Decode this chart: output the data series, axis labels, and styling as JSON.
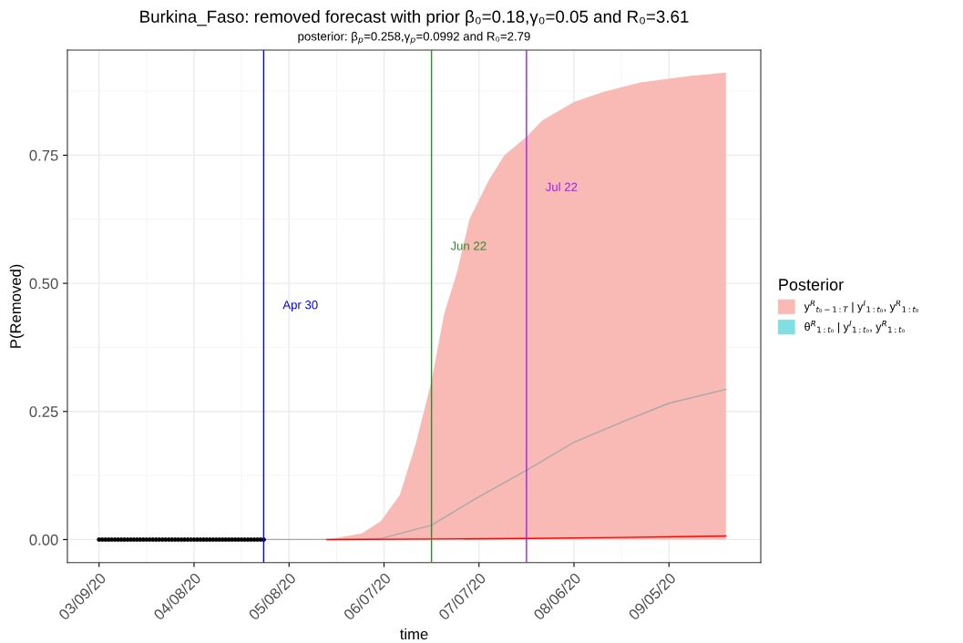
{
  "chart_data": {
    "type": "line",
    "title": "Burkina_Faso: removed forecast with prior β₀=0.18,γ₀=0.05 and R₀=3.61",
    "subtitle": "posterior: β$_{p}$=0.258,γ$_{p}$=0.0992 and R₀=2.79",
    "xlabel": "time",
    "ylabel": "P(Removed)",
    "legend_title": "Posterior",
    "legend": "right",
    "grid": true,
    "xlim": [
      "2020-02-28",
      "2020-10-04"
    ],
    "xticks": [
      {
        "value": "2020-03-09",
        "label": "03/09/20"
      },
      {
        "value": "2020-04-08",
        "label": "04/08/20"
      },
      {
        "value": "2020-05-08",
        "label": "05/08/20"
      },
      {
        "value": "2020-06-07",
        "label": "06/07/20"
      },
      {
        "value": "2020-07-07",
        "label": "07/07/20"
      },
      {
        "value": "2020-08-06",
        "label": "08/06/20"
      },
      {
        "value": "2020-09-05",
        "label": "09/05/20"
      }
    ],
    "ylim": [
      -0.045,
      0.955
    ],
    "yticks": [
      {
        "value": 0,
        "label": "0.00"
      },
      {
        "value": 0.25,
        "label": "0.25"
      },
      {
        "value": 0.5,
        "label": "0.50"
      },
      {
        "value": 0.75,
        "label": "0.75"
      }
    ],
    "ref_lines": [
      {
        "axis": "x",
        "value": "2020-04-30",
        "label": "Apr 30",
        "color": "#0000ff"
      },
      {
        "axis": "x",
        "value": "2020-06-22",
        "label": "Jun 22",
        "color": "#2e8b2e"
      },
      {
        "axis": "x",
        "value": "2020-07-22",
        "label": "Jul 22",
        "color": "#a020f0"
      }
    ],
    "series": [
      {
        "type": "area",
        "name": "y$^{R}$$_{t₀−1:T}$ | y$^{I}$$_{1:t₀}$, y$^{R}$$_{1:t₀}$",
        "color": "#f9b9b4",
        "x": [
          "2020-05-20",
          "2020-05-31",
          "2020-06-06",
          "2020-06-12",
          "2020-06-17",
          "2020-06-22",
          "2020-06-26",
          "2020-06-30",
          "2020-07-04",
          "2020-07-10",
          "2020-07-15",
          "2020-07-22",
          "2020-07-27",
          "2020-08-06",
          "2020-08-15",
          "2020-08-27",
          "2020-09-12",
          "2020-09-23"
        ],
        "values": [
          0,
          0.012,
          0.036,
          0.087,
          0.186,
          0.309,
          0.44,
          0.52,
          0.625,
          0.7,
          0.75,
          0.786,
          0.818,
          0.854,
          0.873,
          0.892,
          0.905,
          0.911
        ]
      },
      {
        "type": "area",
        "name": "θ$^{R}$$_{1:t₀}$ | y$^{I}$$_{1:t₀}$, y$^{R}$$_{1:t₀}$",
        "color": "#7fdfe1"
      },
      {
        "color": "#a8a8a8",
        "x": [
          "2020-04-30",
          "2020-05-20",
          "2020-05-31",
          "2020-06-06",
          "2020-06-22",
          "2020-07-06",
          "2020-07-22",
          "2020-08-06",
          "2020-08-21",
          "2020-09-05",
          "2020-09-23"
        ],
        "values": [
          0,
          0,
          0.001,
          0.002,
          0.028,
          0.08,
          0.135,
          0.19,
          0.229,
          0.266,
          0.293
        ]
      },
      {
        "color": "#ff0000",
        "x": [
          "2020-05-20",
          "2020-06-22",
          "2020-07-22",
          "2020-08-21",
          "2020-09-23"
        ],
        "values": [
          0,
          0.001,
          0.002,
          0.004,
          0.007
        ]
      },
      {
        "type": "scatter",
        "color": "#000000",
        "marker": "circle",
        "x": [
          "2020-03-09",
          "2020-03-10",
          "2020-03-11",
          "2020-03-12",
          "2020-03-13",
          "2020-03-14",
          "2020-03-15",
          "2020-03-16",
          "2020-03-17",
          "2020-03-18",
          "2020-03-19",
          "2020-03-20",
          "2020-03-21",
          "2020-03-22",
          "2020-03-23",
          "2020-03-24",
          "2020-03-25",
          "2020-03-26",
          "2020-03-27",
          "2020-03-28",
          "2020-03-29",
          "2020-03-30",
          "2020-03-31",
          "2020-04-01",
          "2020-04-02",
          "2020-04-03",
          "2020-04-04",
          "2020-04-05",
          "2020-04-06",
          "2020-04-07",
          "2020-04-08",
          "2020-04-09",
          "2020-04-10",
          "2020-04-11",
          "2020-04-12",
          "2020-04-13",
          "2020-04-14",
          "2020-04-15",
          "2020-04-16",
          "2020-04-17",
          "2020-04-18",
          "2020-04-19",
          "2020-04-20",
          "2020-04-21",
          "2020-04-22",
          "2020-04-23",
          "2020-04-24",
          "2020-04-25",
          "2020-04-26",
          "2020-04-27",
          "2020-04-28",
          "2020-04-29",
          "2020-04-30"
        ],
        "values": [
          0,
          0,
          0,
          0,
          0,
          0,
          0,
          0,
          0,
          0,
          0,
          0,
          0,
          0,
          0,
          0,
          0,
          0,
          0,
          0,
          0,
          0,
          0,
          0,
          0,
          0,
          0,
          0,
          0,
          0,
          0,
          0,
          0,
          0,
          0,
          0,
          0,
          0,
          0,
          0,
          0,
          0,
          0,
          0,
          0,
          0,
          0,
          0,
          0,
          0,
          0,
          0,
          0
        ]
      }
    ]
  }
}
